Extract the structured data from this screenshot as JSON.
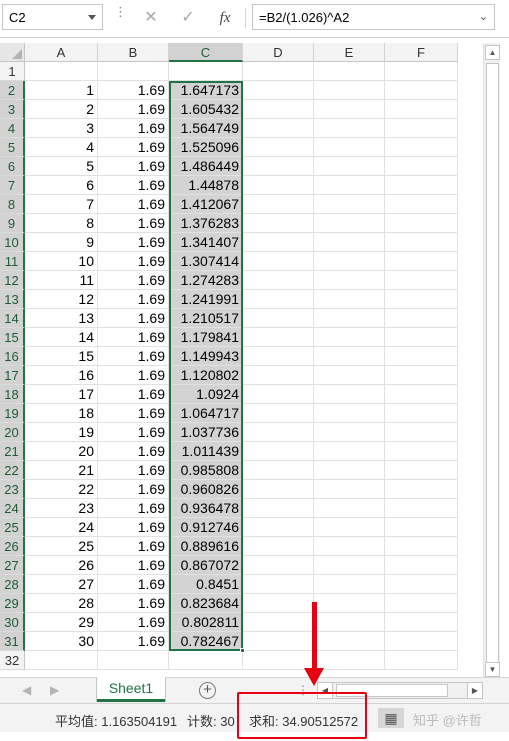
{
  "formula_bar": {
    "name_box": "C2",
    "cancel_glyph": "✕",
    "enter_glyph": "✓",
    "fx_label": "fx",
    "formula": "=B2/(1.026)^A2"
  },
  "columns": [
    "A",
    "B",
    "C",
    "D",
    "E",
    "F"
  ],
  "selected_column": "C",
  "rows": [
    {
      "n": "1",
      "a": "",
      "b": "",
      "c": ""
    },
    {
      "n": "2",
      "a": "1",
      "b": "1.69",
      "c": "1.647173"
    },
    {
      "n": "3",
      "a": "2",
      "b": "1.69",
      "c": "1.605432"
    },
    {
      "n": "4",
      "a": "3",
      "b": "1.69",
      "c": "1.564749"
    },
    {
      "n": "5",
      "a": "4",
      "b": "1.69",
      "c": "1.525096"
    },
    {
      "n": "6",
      "a": "5",
      "b": "1.69",
      "c": "1.486449"
    },
    {
      "n": "7",
      "a": "6",
      "b": "1.69",
      "c": "1.44878"
    },
    {
      "n": "8",
      "a": "7",
      "b": "1.69",
      "c": "1.412067"
    },
    {
      "n": "9",
      "a": "8",
      "b": "1.69",
      "c": "1.376283"
    },
    {
      "n": "10",
      "a": "9",
      "b": "1.69",
      "c": "1.341407"
    },
    {
      "n": "11",
      "a": "10",
      "b": "1.69",
      "c": "1.307414"
    },
    {
      "n": "12",
      "a": "11",
      "b": "1.69",
      "c": "1.274283"
    },
    {
      "n": "13",
      "a": "12",
      "b": "1.69",
      "c": "1.241991"
    },
    {
      "n": "14",
      "a": "13",
      "b": "1.69",
      "c": "1.210517"
    },
    {
      "n": "15",
      "a": "14",
      "b": "1.69",
      "c": "1.179841"
    },
    {
      "n": "16",
      "a": "15",
      "b": "1.69",
      "c": "1.149943"
    },
    {
      "n": "17",
      "a": "16",
      "b": "1.69",
      "c": "1.120802"
    },
    {
      "n": "18",
      "a": "17",
      "b": "1.69",
      "c": "1.0924"
    },
    {
      "n": "19",
      "a": "18",
      "b": "1.69",
      "c": "1.064717"
    },
    {
      "n": "20",
      "a": "19",
      "b": "1.69",
      "c": "1.037736"
    },
    {
      "n": "21",
      "a": "20",
      "b": "1.69",
      "c": "1.011439"
    },
    {
      "n": "22",
      "a": "21",
      "b": "1.69",
      "c": "0.985808"
    },
    {
      "n": "23",
      "a": "22",
      "b": "1.69",
      "c": "0.960826"
    },
    {
      "n": "24",
      "a": "23",
      "b": "1.69",
      "c": "0.936478"
    },
    {
      "n": "25",
      "a": "24",
      "b": "1.69",
      "c": "0.912746"
    },
    {
      "n": "26",
      "a": "25",
      "b": "1.69",
      "c": "0.889616"
    },
    {
      "n": "27",
      "a": "26",
      "b": "1.69",
      "c": "0.867072"
    },
    {
      "n": "28",
      "a": "27",
      "b": "1.69",
      "c": "0.8451"
    },
    {
      "n": "29",
      "a": "28",
      "b": "1.69",
      "c": "0.823684"
    },
    {
      "n": "30",
      "a": "29",
      "b": "1.69",
      "c": "0.802811"
    },
    {
      "n": "31",
      "a": "30",
      "b": "1.69",
      "c": "0.782467"
    },
    {
      "n": "32",
      "a": "",
      "b": "",
      "c": ""
    }
  ],
  "sheet_tabs": [
    "Sheet1"
  ],
  "add_sheet_glyph": "+",
  "status": {
    "average_label": "平均值: 1.163504191",
    "count_label": "计数: 30",
    "sum_label": "求和: 34.90512572"
  },
  "watermark": "知乎 @许哲",
  "icons": [
    "dropdown-icon",
    "cancel-icon",
    "enter-icon",
    "fx-icon",
    "add-sheet-icon",
    "normal-view-icon",
    "page-layout-icon"
  ],
  "colors": {
    "accent": "#217346",
    "annotation": "#e60012",
    "selection_fill": "#d3d3d3"
  }
}
